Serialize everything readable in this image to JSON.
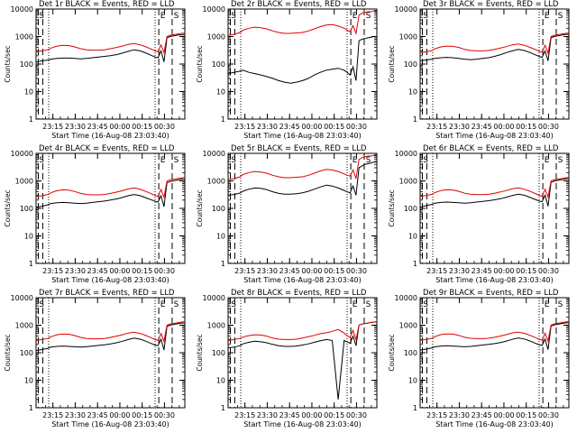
{
  "colors": {
    "background": "#ffffff",
    "events": "#000000",
    "lld": "#e00000",
    "axis": "#000000"
  },
  "chart_data": {
    "type": "line",
    "layout": "3x3 grid",
    "ylabel": "Counts/sec",
    "xlabel": "Start Time (16-Aug-08 23:03:40)",
    "yscale": "log",
    "ylim": [
      1,
      10000
    ],
    "y_ticks": [
      "1",
      "10",
      "100",
      "1000",
      "10000"
    ],
    "x_ticks": [
      "23:15",
      "23:30",
      "23:45",
      "00:00",
      "00:15",
      "00:30"
    ],
    "x_tick_minutes": [
      11.33,
      26.33,
      41.33,
      56.33,
      71.33,
      86.33
    ],
    "x_range_minutes": [
      0,
      100
    ],
    "legend": {
      "events": "BLACK = Events",
      "lld": "RED = LLD"
    },
    "region_labels": [
      "S",
      "E",
      "S"
    ],
    "region_label_minutes": [
      2,
      83.5,
      92.5
    ],
    "dashed_lines_minutes": [
      1.5,
      4.5,
      82.5,
      91.5
    ],
    "dotted_lines_minutes": [
      8.5,
      80
    ],
    "common_x_minutes": [
      0,
      4,
      8,
      10,
      14,
      18,
      22,
      26,
      30,
      34,
      38,
      42,
      46,
      50,
      54,
      58,
      62,
      66,
      70,
      74,
      78,
      80,
      82,
      84,
      86,
      88,
      90,
      92,
      94,
      96,
      98,
      100
    ],
    "panels": [
      {
        "title": "Det 1r BLACK = Events, RED = LLD",
        "series": [
          {
            "name": "Events",
            "values": [
              120,
              130,
              140,
              150,
              160,
              165,
              165,
              160,
              155,
              160,
              170,
              180,
              190,
              200,
              220,
              250,
              290,
              330,
              300,
              250,
              200,
              180,
              170,
              300,
              120,
              900,
              1000,
              1050,
              1100,
              1150,
              1150,
              1200
            ]
          },
          {
            "name": "LLD",
            "values": [
              280,
              300,
              330,
              380,
              450,
              480,
              470,
              420,
              360,
              330,
              320,
              320,
              330,
              360,
              400,
              450,
              520,
              560,
              500,
              420,
              340,
              300,
              280,
              500,
              260,
              1000,
              1100,
              1150,
              1200,
              1250,
              1300,
              1350
            ]
          }
        ]
      },
      {
        "title": "Det 2r BLACK = Events, RED = LLD",
        "series": [
          {
            "name": "Events",
            "values": [
              45,
              50,
              55,
              60,
              50,
              45,
              40,
              35,
              30,
              25,
              22,
              20,
              22,
              25,
              30,
              40,
              50,
              60,
              65,
              70,
              60,
              50,
              40,
              80,
              25,
              700,
              800,
              850,
              900,
              950,
              1000,
              1000
            ]
          },
          {
            "name": "LLD",
            "values": [
              1100,
              1200,
              1400,
              1700,
              2000,
              2200,
              2100,
              1900,
              1600,
              1400,
              1300,
              1300,
              1350,
              1400,
              1600,
              1900,
              2300,
              2600,
              2700,
              2400,
              2000,
              1700,
              1500,
              2500,
              1300,
              6000,
              7000,
              7500,
              8000,
              8000,
              8500,
              8500
            ]
          }
        ]
      },
      {
        "title": "Det 3r BLACK = Events, RED = LLD",
        "series": [
          {
            "name": "Events",
            "values": [
              130,
              140,
              150,
              160,
              170,
              175,
              170,
              160,
              150,
              145,
              150,
              160,
              170,
              190,
              220,
              260,
              300,
              340,
              310,
              260,
              210,
              190,
              175,
              300,
              130,
              900,
              1000,
              1050,
              1100,
              1150,
              1200,
              1200
            ]
          },
          {
            "name": "LLD",
            "values": [
              260,
              280,
              310,
              360,
              420,
              450,
              440,
              400,
              340,
              310,
              300,
              300,
              310,
              340,
              380,
              430,
              500,
              540,
              480,
              400,
              330,
              290,
              270,
              480,
              250,
              1000,
              1100,
              1150,
              1200,
              1250,
              1300,
              1350
            ]
          }
        ]
      },
      {
        "title": "Det 4r BLACK = Events, RED = LLD",
        "series": [
          {
            "name": "Events",
            "values": [
              110,
              120,
              135,
              150,
              160,
              165,
              160,
              155,
              150,
              155,
              165,
              175,
              185,
              200,
              220,
              250,
              290,
              320,
              290,
              240,
              200,
              180,
              170,
              290,
              115,
              850,
              950,
              1000,
              1050,
              1100,
              1150,
              1150
            ]
          },
          {
            "name": "LLD",
            "values": [
              270,
              290,
              320,
              370,
              440,
              470,
              460,
              410,
              350,
              320,
              310,
              310,
              320,
              350,
              390,
              440,
              510,
              550,
              490,
              410,
              330,
              295,
              275,
              490,
              255,
              980,
              1080,
              1130,
              1180,
              1230,
              1280,
              1330
            ]
          }
        ]
      },
      {
        "title": "Det 5r BLACK = Events, RED = LLD",
        "series": [
          {
            "name": "Events",
            "values": [
              300,
              320,
              360,
              420,
              500,
              550,
              540,
              480,
              400,
              350,
              330,
              330,
              340,
              370,
              420,
              500,
              600,
              700,
              650,
              550,
              450,
              400,
              370,
              650,
              300,
              3000,
              3500,
              4000,
              4200,
              4500,
              4800,
              5000
            ]
          },
          {
            "name": "LLD",
            "values": [
              1100,
              1200,
              1400,
              1700,
              2000,
              2200,
              2100,
              1900,
              1600,
              1400,
              1300,
              1300,
              1350,
              1400,
              1600,
              1900,
              2300,
              2600,
              2500,
              2200,
              1800,
              1600,
              1500,
              2500,
              1200,
              6000,
              7000,
              7500,
              8000,
              8000,
              8500,
              8500
            ]
          }
        ]
      },
      {
        "title": "Det 6r BLACK = Events, RED = LLD",
        "series": [
          {
            "name": "Events",
            "values": [
              110,
              125,
              140,
              155,
              165,
              170,
              165,
              160,
              155,
              160,
              170,
              180,
              190,
              205,
              225,
              255,
              295,
              330,
              300,
              250,
              205,
              185,
              175,
              300,
              120,
              880,
              980,
              1030,
              1080,
              1130,
              1180,
              1200
            ]
          },
          {
            "name": "LLD",
            "values": [
              275,
              295,
              325,
              375,
              445,
              475,
              465,
              415,
              355,
              325,
              315,
              315,
              325,
              355,
              395,
              445,
              515,
              555,
              495,
              415,
              335,
              298,
              278,
              495,
              258,
              990,
              1090,
              1140,
              1190,
              1240,
              1290,
              1340
            ]
          }
        ]
      },
      {
        "title": "Det 7r BLACK = Events, RED = LLD",
        "series": [
          {
            "name": "Events",
            "values": [
              120,
              130,
              145,
              160,
              170,
              175,
              170,
              165,
              160,
              165,
              175,
              185,
              195,
              210,
              230,
              260,
              300,
              340,
              310,
              260,
              210,
              190,
              180,
              310,
              125,
              900,
              1000,
              1050,
              1100,
              1150,
              1200,
              1200
            ]
          },
          {
            "name": "LLD",
            "values": [
              280,
              300,
              330,
              380,
              450,
              480,
              470,
              420,
              360,
              330,
              320,
              320,
              330,
              360,
              400,
              450,
              520,
              560,
              500,
              420,
              340,
              300,
              280,
              500,
              260,
              1000,
              1100,
              1150,
              1200,
              1250,
              1300,
              1350
            ]
          }
        ]
      },
      {
        "title": "Det 8r BLACK = Events, RED = LLD",
        "series": [
          {
            "name": "Events",
            "values": [
              150,
              160,
              180,
              210,
              240,
              260,
              250,
              230,
              200,
              180,
              170,
              170,
              175,
              190,
              210,
              240,
              270,
              300,
              280,
              2,
              280,
              250,
              220,
              400,
              180,
              1000,
              1100,
              1150,
              1200,
              1250,
              1300,
              1300
            ]
          },
          {
            "name": "LLD",
            "values": [
              280,
              300,
              330,
              370,
              420,
              450,
              440,
              400,
              340,
              310,
              300,
              300,
              310,
              340,
              380,
              430,
              490,
              530,
              600,
              700,
              520,
              420,
              360,
              650,
              300,
              1000,
              1100,
              1150,
              1200,
              1250,
              1300,
              1350
            ]
          }
        ]
      },
      {
        "title": "Det 9r BLACK = Events, RED = LLD",
        "series": [
          {
            "name": "Events",
            "values": [
              125,
              135,
              150,
              165,
              175,
              180,
              175,
              170,
              165,
              170,
              180,
              190,
              200,
              215,
              235,
              265,
              305,
              345,
              315,
              265,
              215,
              195,
              185,
              315,
              130,
              920,
              1020,
              1070,
              1120,
              1170,
              1220,
              1220
            ]
          },
          {
            "name": "LLD",
            "values": [
              285,
              305,
              335,
              385,
              455,
              485,
              475,
              425,
              365,
              335,
              325,
              325,
              335,
              365,
              405,
              455,
              525,
              565,
              505,
              425,
              345,
              305,
              285,
              505,
              265,
              1010,
              1110,
              1160,
              1210,
              1260,
              1310,
              1360
            ]
          }
        ]
      }
    ]
  }
}
